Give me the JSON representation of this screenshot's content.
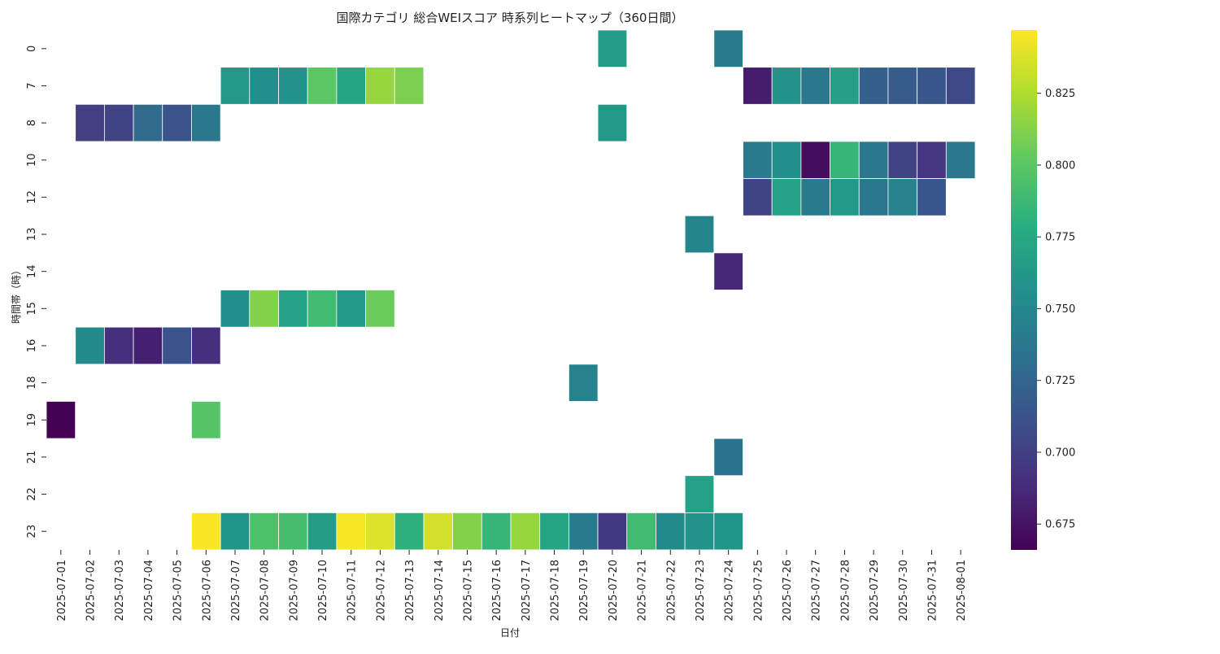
{
  "chart_data": {
    "type": "heatmap",
    "title": "国際カテゴリ 総合WEIスコア 時系列ヒートマップ（360日間）",
    "xlabel": "日付",
    "ylabel": "時間帯（時）",
    "x_categories": [
      "2025-07-01",
      "2025-07-02",
      "2025-07-03",
      "2025-07-04",
      "2025-07-05",
      "2025-07-06",
      "2025-07-07",
      "2025-07-08",
      "2025-07-09",
      "2025-07-10",
      "2025-07-11",
      "2025-07-12",
      "2025-07-13",
      "2025-07-14",
      "2025-07-15",
      "2025-07-16",
      "2025-07-17",
      "2025-07-18",
      "2025-07-19",
      "2025-07-20",
      "2025-07-21",
      "2025-07-22",
      "2025-07-23",
      "2025-07-24",
      "2025-07-25",
      "2025-07-26",
      "2025-07-27",
      "2025-07-28",
      "2025-07-29",
      "2025-07-30",
      "2025-07-31",
      "2025-08-01"
    ],
    "y_categories": [
      "0",
      "7",
      "8",
      "10",
      "12",
      "13",
      "14",
      "15",
      "16",
      "18",
      "19",
      "21",
      "22",
      "23"
    ],
    "values": [
      [
        null,
        null,
        null,
        null,
        null,
        null,
        null,
        null,
        null,
        null,
        null,
        null,
        null,
        null,
        null,
        null,
        null,
        null,
        null,
        0.765,
        null,
        null,
        null,
        0.74,
        null,
        null,
        null,
        null,
        null,
        null,
        null,
        null
      ],
      [
        null,
        null,
        null,
        null,
        null,
        null,
        0.762,
        0.755,
        0.758,
        0.8,
        0.772,
        0.818,
        0.81,
        null,
        null,
        null,
        null,
        null,
        null,
        null,
        null,
        null,
        null,
        null,
        0.68,
        0.758,
        0.738,
        0.768,
        0.722,
        0.718,
        0.714,
        0.706
      ],
      [
        null,
        0.7,
        0.702,
        0.728,
        0.712,
        0.738,
        null,
        null,
        null,
        null,
        null,
        null,
        null,
        null,
        null,
        null,
        null,
        null,
        null,
        0.762,
        null,
        null,
        null,
        null,
        null,
        null,
        null,
        null,
        null,
        null,
        null,
        null
      ],
      [
        null,
        null,
        null,
        null,
        null,
        null,
        null,
        null,
        null,
        null,
        null,
        null,
        null,
        null,
        null,
        null,
        null,
        null,
        null,
        null,
        null,
        null,
        null,
        null,
        0.74,
        0.756,
        0.672,
        0.785,
        0.738,
        0.702,
        0.694,
        0.738
      ],
      [
        null,
        null,
        null,
        null,
        null,
        null,
        null,
        null,
        null,
        null,
        null,
        null,
        null,
        null,
        null,
        null,
        null,
        null,
        null,
        null,
        null,
        null,
        null,
        null,
        0.702,
        0.77,
        0.74,
        0.762,
        0.738,
        0.746,
        0.714,
        null
      ],
      [
        null,
        null,
        null,
        null,
        null,
        null,
        null,
        null,
        null,
        null,
        null,
        null,
        null,
        null,
        null,
        null,
        null,
        null,
        null,
        null,
        null,
        null,
        0.748,
        null,
        null,
        null,
        null,
        null,
        null,
        null,
        null,
        null
      ],
      [
        null,
        null,
        null,
        null,
        null,
        null,
        null,
        null,
        null,
        null,
        null,
        null,
        null,
        null,
        null,
        null,
        null,
        null,
        null,
        null,
        null,
        null,
        null,
        0.686,
        null,
        null,
        null,
        null,
        null,
        null,
        null,
        null
      ],
      [
        null,
        null,
        null,
        null,
        null,
        null,
        0.756,
        0.812,
        0.77,
        0.79,
        0.762,
        0.805,
        null,
        null,
        null,
        null,
        null,
        null,
        null,
        null,
        null,
        null,
        null,
        null,
        null,
        null,
        null,
        null,
        null,
        null,
        null,
        null
      ],
      [
        null,
        0.752,
        0.69,
        0.682,
        0.712,
        0.69,
        null,
        null,
        null,
        null,
        null,
        null,
        null,
        null,
        null,
        null,
        null,
        null,
        null,
        null,
        null,
        null,
        null,
        null,
        null,
        null,
        null,
        null,
        null,
        null,
        null,
        null
      ],
      [
        null,
        null,
        null,
        null,
        null,
        null,
        null,
        null,
        null,
        null,
        null,
        null,
        null,
        null,
        null,
        null,
        null,
        null,
        0.746,
        null,
        null,
        null,
        null,
        null,
        null,
        null,
        null,
        null,
        null,
        null,
        null,
        null
      ],
      [
        0.666,
        null,
        null,
        null,
        null,
        0.798,
        null,
        null,
        null,
        null,
        null,
        null,
        null,
        null,
        null,
        null,
        null,
        null,
        null,
        null,
        null,
        null,
        null,
        null,
        null,
        null,
        null,
        null,
        null,
        null,
        null,
        null
      ],
      [
        null,
        null,
        null,
        null,
        null,
        null,
        null,
        null,
        null,
        null,
        null,
        null,
        null,
        null,
        null,
        null,
        null,
        null,
        null,
        null,
        null,
        null,
        null,
        0.735,
        null,
        null,
        null,
        null,
        null,
        null,
        null,
        null
      ],
      [
        null,
        null,
        null,
        null,
        null,
        null,
        null,
        null,
        null,
        null,
        null,
        null,
        null,
        null,
        null,
        null,
        null,
        null,
        null,
        null,
        null,
        null,
        0.77,
        null,
        null,
        null,
        null,
        null,
        null,
        null,
        null,
        null
      ],
      [
        null,
        null,
        null,
        null,
        null,
        0.846,
        0.76,
        0.795,
        0.792,
        0.766,
        0.845,
        0.838,
        0.782,
        0.835,
        0.812,
        0.785,
        0.818,
        0.772,
        0.74,
        0.696,
        0.79,
        0.752,
        0.758,
        0.76,
        null,
        null,
        null,
        null,
        null,
        null,
        null,
        null
      ]
    ],
    "colormap": "viridis",
    "colorbar": {
      "range": [
        0.666,
        0.847
      ],
      "ticks": [
        0.675,
        0.7,
        0.725,
        0.75,
        0.775,
        0.8,
        0.825
      ],
      "tick_labels": [
        "0.675",
        "0.700",
        "0.725",
        "0.750",
        "0.775",
        "0.800",
        "0.825"
      ]
    }
  }
}
